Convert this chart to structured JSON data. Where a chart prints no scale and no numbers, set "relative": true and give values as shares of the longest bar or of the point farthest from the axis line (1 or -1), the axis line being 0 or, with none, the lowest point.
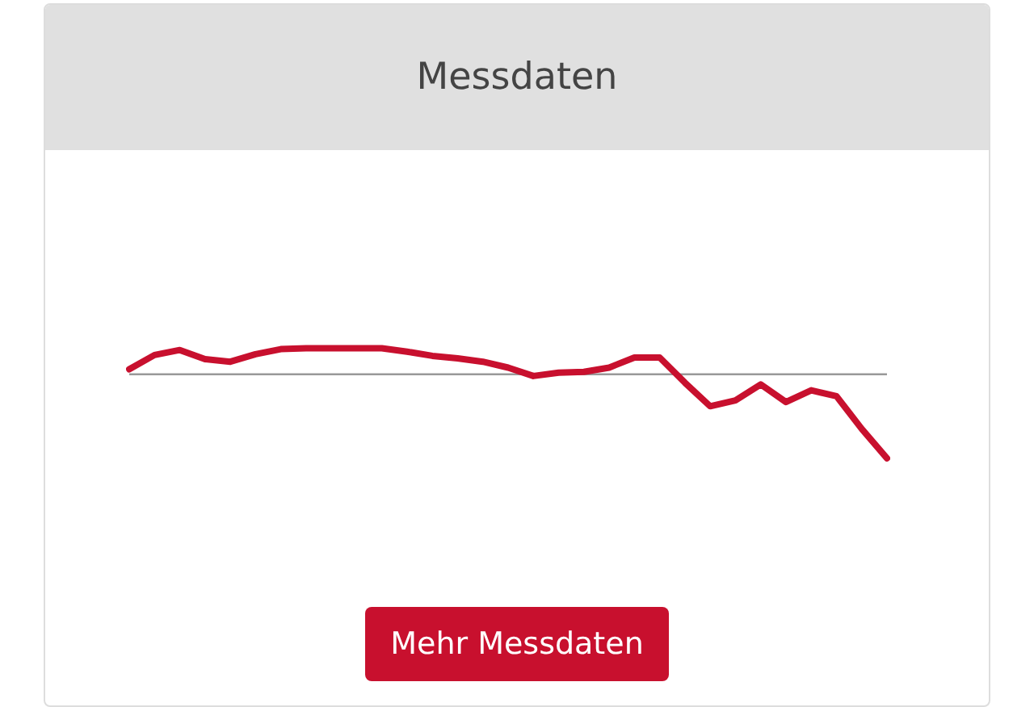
{
  "chart_data": {
    "type": "line",
    "title": "Messdaten",
    "annotations": [
      "Mehr Messdaten"
    ],
    "relative": true,
    "legend": false,
    "marker": "none",
    "line_style": "solid",
    "categories": [
      null,
      null,
      null,
      null,
      null,
      null,
      null,
      null,
      null,
      null,
      null,
      null,
      null,
      null,
      null,
      null,
      null,
      null,
      null,
      null,
      null,
      null,
      null,
      null,
      null,
      null,
      null,
      null,
      null,
      null,
      null
    ],
    "series": [
      {
        "color": "#c8102e",
        "values": [
          0.06,
          0.23,
          0.29,
          0.18,
          0.15,
          0.24,
          0.3,
          0.31,
          0.31,
          0.31,
          0.31,
          0.27,
          0.22,
          0.19,
          0.15,
          0.08,
          -0.02,
          0.02,
          0.03,
          0.08,
          0.2,
          0.2,
          -0.1,
          -0.38,
          -0.31,
          -0.12,
          -0.33,
          -0.19,
          -0.26,
          -0.65,
          -1
        ]
      }
    ]
  }
}
